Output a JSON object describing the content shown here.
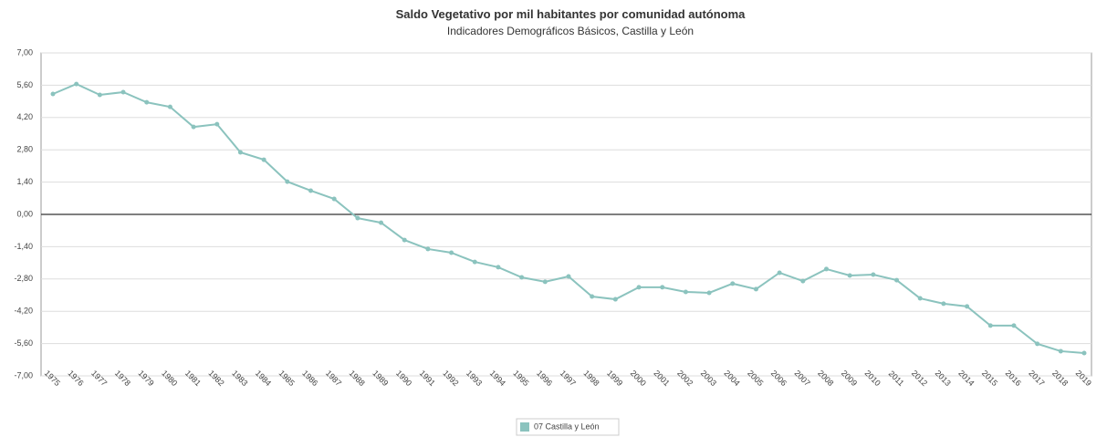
{
  "chart_data": {
    "type": "line",
    "title": "Saldo Vegetativo por mil habitantes por comunidad autónoma",
    "subtitle": "Indicadores Demográficos Básicos, Castilla y León",
    "categories": [
      "1975",
      "1976",
      "1977",
      "1978",
      "1979",
      "1980",
      "1981",
      "1982",
      "1983",
      "1984",
      "1985",
      "1986",
      "1987",
      "1988",
      "1989",
      "1990",
      "1991",
      "1992",
      "1993",
      "1994",
      "1995",
      "1996",
      "1997",
      "1998",
      "1999",
      "2000",
      "2001",
      "2002",
      "2003",
      "2004",
      "2005",
      "2006",
      "2007",
      "2008",
      "2009",
      "2010",
      "2011",
      "2012",
      "2013",
      "2014",
      "2015",
      "2016",
      "2017",
      "2018",
      "2019"
    ],
    "series": [
      {
        "name": "07 Castilla y León",
        "color": "#8bc3be",
        "values": [
          5.22,
          5.65,
          5.18,
          5.3,
          4.86,
          4.66,
          3.79,
          3.91,
          2.69,
          2.37,
          1.42,
          1.03,
          0.67,
          -0.16,
          -0.36,
          -1.11,
          -1.5,
          -1.66,
          -2.06,
          -2.29,
          -2.73,
          -2.92,
          -2.69,
          -3.56,
          -3.68,
          -3.16,
          -3.16,
          -3.36,
          -3.4,
          -3.0,
          -3.24,
          -2.53,
          -2.89,
          -2.37,
          -2.65,
          -2.61,
          -2.85,
          -3.64,
          -3.87,
          -3.99,
          -4.82,
          -4.82,
          -5.61,
          -5.93,
          -6.01
        ]
      }
    ],
    "ylim": [
      -7,
      7
    ],
    "yticks": [
      {
        "value": -7,
        "label": "-7,00"
      },
      {
        "value": -5.6,
        "label": "-5,60"
      },
      {
        "value": -4.2,
        "label": "-4,20"
      },
      {
        "value": -2.8,
        "label": "-2,80"
      },
      {
        "value": -1.4,
        "label": "-1,40"
      },
      {
        "value": 0,
        "label": "0,00"
      },
      {
        "value": 1.4,
        "label": "1,40"
      },
      {
        "value": 2.8,
        "label": "2,80"
      },
      {
        "value": 4.2,
        "label": "4,20"
      },
      {
        "value": 5.6,
        "label": "5,60"
      },
      {
        "value": 7,
        "label": "7,00"
      }
    ],
    "grid": true,
    "legend": "bottom"
  }
}
